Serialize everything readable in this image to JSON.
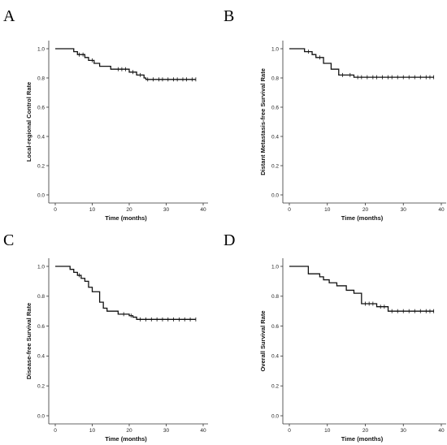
{
  "chart_data": [
    {
      "type": "line",
      "panel": "A",
      "title": "",
      "xlabel": "Time (months)",
      "ylabel": "Local-regional Control Rate",
      "xlim": [
        0,
        40
      ],
      "ylim": [
        0.0,
        1.0
      ],
      "xticks": [
        "0",
        "10",
        "20",
        "30",
        "40"
      ],
      "yticks": [
        "0.0",
        "0.2",
        "0.4",
        "0.6",
        "0.8",
        "1.0"
      ],
      "grid": false,
      "series": [
        {
          "steps": [
            [
              0,
              1.0
            ],
            [
              5,
              0.98
            ],
            [
              6,
              0.96
            ],
            [
              8,
              0.94
            ],
            [
              9,
              0.92
            ],
            [
              10.5,
              0.9
            ],
            [
              12,
              0.88
            ],
            [
              15,
              0.86
            ],
            [
              20,
              0.84
            ],
            [
              22,
              0.82
            ],
            [
              24,
              0.8
            ],
            [
              24.5,
              0.79
            ],
            [
              38,
              0.79
            ]
          ],
          "censored": [
            [
              6.5,
              0.96
            ],
            [
              7.5,
              0.96
            ],
            [
              10,
              0.92
            ],
            [
              17,
              0.86
            ],
            [
              18,
              0.86
            ],
            [
              19,
              0.86
            ],
            [
              21,
              0.84
            ],
            [
              23,
              0.82
            ],
            [
              25,
              0.79
            ],
            [
              26.5,
              0.79
            ],
            [
              28,
              0.79
            ],
            [
              29,
              0.79
            ],
            [
              30.5,
              0.79
            ],
            [
              32,
              0.79
            ],
            [
              33,
              0.79
            ],
            [
              34.5,
              0.79
            ],
            [
              35.5,
              0.79
            ],
            [
              37,
              0.79
            ],
            [
              38,
              0.79
            ]
          ]
        }
      ]
    },
    {
      "type": "line",
      "panel": "B",
      "title": "",
      "xlabel": "Time (months)",
      "ylabel": "Distant Metastasis-free Survival Rate",
      "xlim": [
        0,
        40
      ],
      "ylim": [
        0.0,
        1.0
      ],
      "xticks": [
        "0",
        "10",
        "20",
        "30",
        "40"
      ],
      "yticks": [
        "0.0",
        "0.2",
        "0.4",
        "0.6",
        "0.8",
        "1.0"
      ],
      "grid": false,
      "series": [
        {
          "steps": [
            [
              0,
              1.0
            ],
            [
              4,
              0.98
            ],
            [
              6,
              0.96
            ],
            [
              7,
              0.94
            ],
            [
              9,
              0.9
            ],
            [
              11,
              0.86
            ],
            [
              13,
              0.82
            ],
            [
              17,
              0.805
            ],
            [
              38,
              0.805
            ]
          ],
          "censored": [
            [
              5,
              0.98
            ],
            [
              8,
              0.94
            ],
            [
              14,
              0.82
            ],
            [
              16,
              0.82
            ],
            [
              18,
              0.805
            ],
            [
              19,
              0.805
            ],
            [
              20.5,
              0.805
            ],
            [
              22,
              0.805
            ],
            [
              23,
              0.805
            ],
            [
              24.5,
              0.805
            ],
            [
              26,
              0.805
            ],
            [
              27,
              0.805
            ],
            [
              28.5,
              0.805
            ],
            [
              30,
              0.805
            ],
            [
              31.5,
              0.805
            ],
            [
              33,
              0.805
            ],
            [
              34.5,
              0.805
            ],
            [
              36,
              0.805
            ],
            [
              37,
              0.805
            ],
            [
              38,
              0.805
            ]
          ]
        }
      ]
    },
    {
      "type": "line",
      "panel": "C",
      "title": "",
      "xlabel": "Time (months)",
      "ylabel": "Disease-free Survival Rate",
      "xlim": [
        0,
        40
      ],
      "ylim": [
        0.0,
        1.0
      ],
      "xticks": [
        "0",
        "10",
        "20",
        "30",
        "40"
      ],
      "yticks": [
        "0.0",
        "0.2",
        "0.4",
        "0.6",
        "0.8",
        "1.0"
      ],
      "grid": false,
      "series": [
        {
          "steps": [
            [
              0,
              1.0
            ],
            [
              4,
              0.98
            ],
            [
              5,
              0.96
            ],
            [
              6,
              0.94
            ],
            [
              7,
              0.92
            ],
            [
              8,
              0.9
            ],
            [
              9,
              0.86
            ],
            [
              10,
              0.83
            ],
            [
              12,
              0.76
            ],
            [
              13,
              0.72
            ],
            [
              14,
              0.7
            ],
            [
              17,
              0.68
            ],
            [
              20,
              0.67
            ],
            [
              21,
              0.66
            ],
            [
              22,
              0.645
            ],
            [
              38,
              0.645
            ]
          ],
          "censored": [
            [
              6.5,
              0.94
            ],
            [
              18.5,
              0.68
            ],
            [
              20.5,
              0.67
            ],
            [
              23,
              0.645
            ],
            [
              24.5,
              0.645
            ],
            [
              26,
              0.645
            ],
            [
              27.5,
              0.645
            ],
            [
              29,
              0.645
            ],
            [
              30.5,
              0.645
            ],
            [
              32,
              0.645
            ],
            [
              33.5,
              0.645
            ],
            [
              35,
              0.645
            ],
            [
              36.5,
              0.645
            ],
            [
              38,
              0.645
            ]
          ]
        }
      ]
    },
    {
      "type": "line",
      "panel": "D",
      "title": "",
      "xlabel": "Time (months)",
      "ylabel": "Overall Survival Rate",
      "xlim": [
        0,
        40
      ],
      "ylim": [
        0.0,
        1.0
      ],
      "xticks": [
        "0",
        "10",
        "20",
        "30",
        "40"
      ],
      "yticks": [
        "0.0",
        "0.2",
        "0.4",
        "0.6",
        "0.8",
        "1.0"
      ],
      "grid": false,
      "series": [
        {
          "steps": [
            [
              0,
              1.0
            ],
            [
              5,
              0.95
            ],
            [
              8,
              0.93
            ],
            [
              9,
              0.91
            ],
            [
              10.5,
              0.89
            ],
            [
              12.5,
              0.87
            ],
            [
              15,
              0.84
            ],
            [
              17,
              0.82
            ],
            [
              19,
              0.75
            ],
            [
              23,
              0.73
            ],
            [
              26,
              0.7
            ],
            [
              38,
              0.7
            ]
          ],
          "censored": [
            [
              20,
              0.75
            ],
            [
              21,
              0.75
            ],
            [
              22,
              0.75
            ],
            [
              24,
              0.73
            ],
            [
              25,
              0.73
            ],
            [
              27,
              0.7
            ],
            [
              28.5,
              0.7
            ],
            [
              30,
              0.7
            ],
            [
              31.5,
              0.7
            ],
            [
              33,
              0.7
            ],
            [
              34.5,
              0.7
            ],
            [
              36,
              0.7
            ],
            [
              37,
              0.7
            ],
            [
              38,
              0.7
            ]
          ]
        }
      ]
    }
  ]
}
